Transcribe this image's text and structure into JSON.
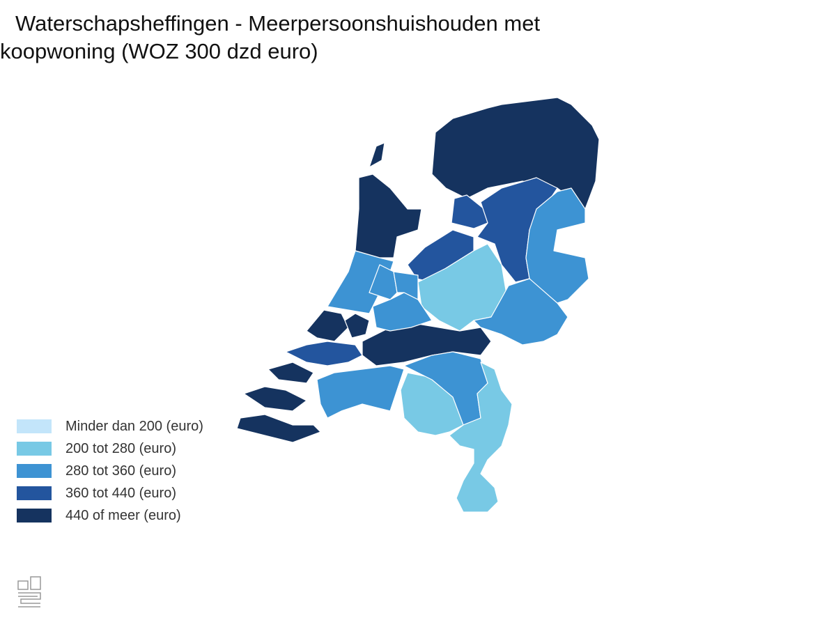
{
  "title": "Waterschapsheffingen - Meerpersoonshuishouden met koopwoning (WOZ 300 dzd euro)",
  "legend": [
    {
      "label": "Minder dan 200 (euro)",
      "color": "#c3e5fa"
    },
    {
      "label": "200 tot 280 (euro)",
      "color": "#78c9e5"
    },
    {
      "label": "280 tot 360 (euro)",
      "color": "#3d93d3"
    },
    {
      "label": "360 tot 440 (euro)",
      "color": "#23559e"
    },
    {
      "label": "440 of meer (euro)",
      "color": "#15335f"
    }
  ]
}
